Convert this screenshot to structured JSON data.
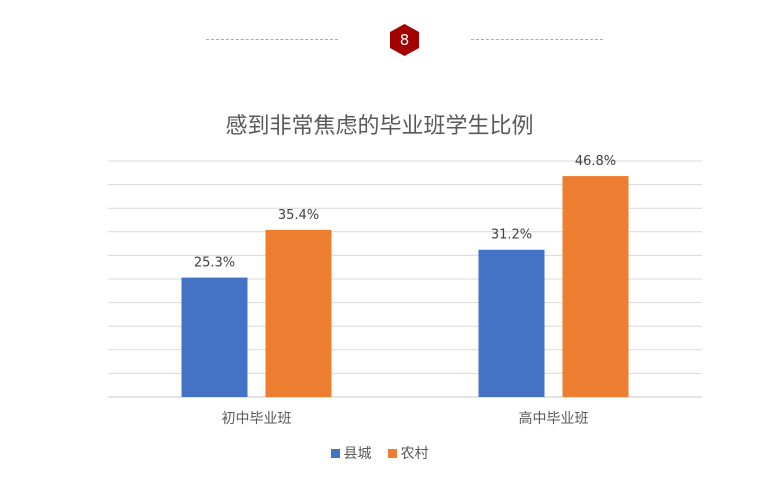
{
  "page_number": "8",
  "colors": {
    "badge": "#a50000",
    "county": "#4472c4",
    "rural": "#ed7d31"
  },
  "chart_data": {
    "type": "bar",
    "title": "感到非常焦虑的毕业班学生比例",
    "categories": [
      "初中毕业班",
      "高中毕业班"
    ],
    "series": [
      {
        "name": "县城",
        "values": [
          25.3,
          31.2
        ],
        "labels": [
          "25.3%",
          "31.2%"
        ]
      },
      {
        "name": "农村",
        "values": [
          35.4,
          46.8
        ],
        "labels": [
          "35.4%",
          "46.8%"
        ]
      }
    ],
    "ylim": [
      0,
      50
    ],
    "grid": true,
    "legend": "bottom"
  }
}
